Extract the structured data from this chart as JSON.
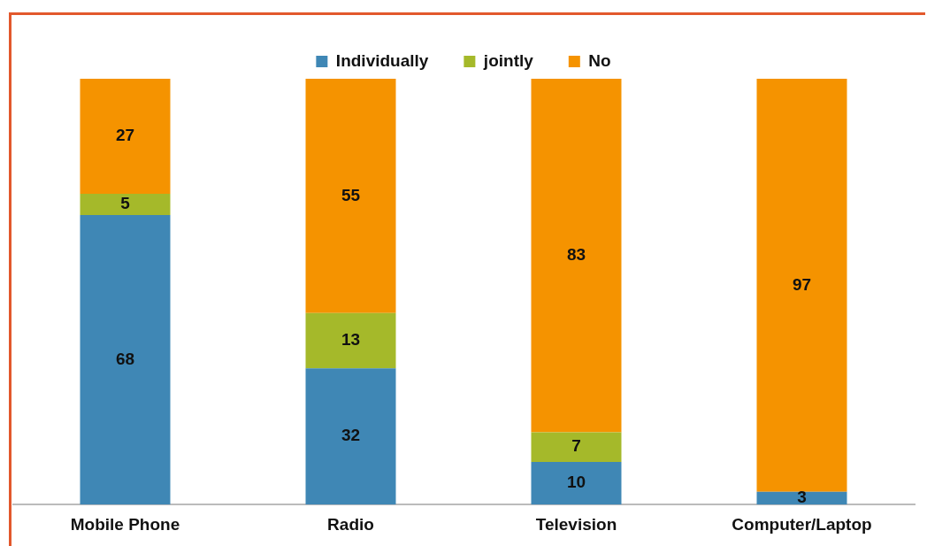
{
  "chart_data": {
    "type": "bar",
    "stacked": true,
    "legend": "top",
    "grid": false,
    "tick_labels": "x",
    "categories": [
      "Mobile Phone",
      "Radio",
      "Television",
      "Computer/Laptop"
    ],
    "series": [
      {
        "name": "Individually",
        "color": "#3f87b5",
        "values": [
          68,
          32,
          10,
          3
        ],
        "value_labels": [
          "68",
          "32",
          "10",
          "3"
        ]
      },
      {
        "name": "jointly",
        "color": "#a5b92a",
        "values": [
          5,
          13,
          7,
          0
        ],
        "value_labels": [
          "5",
          "13",
          "7",
          null
        ]
      },
      {
        "name": "No",
        "color": "#f59300",
        "values": [
          27,
          55,
          83,
          97
        ],
        "value_labels": [
          "27",
          "55",
          "83",
          "97"
        ]
      }
    ]
  }
}
